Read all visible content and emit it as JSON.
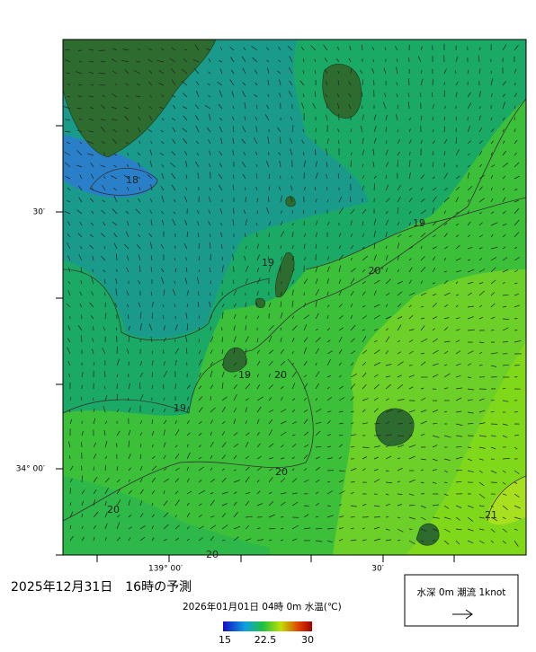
{
  "map": {
    "axis_left": [
      "30′",
      "34° 00′"
    ],
    "axis_bottom": [
      "139° 00′",
      "30′"
    ],
    "contour_labels": [
      18,
      19,
      19,
      "20'",
      19,
      20,
      19,
      20,
      20,
      21,
      20
    ],
    "title": "2025年12月31日　16時の予測",
    "subtitle": "2026年01月01日 04時 0m 水温(℃)",
    "colorbar": {
      "ticks": [
        15,
        22.5,
        30
      ]
    },
    "legend": "水深 0m 潮流 1knot"
  }
}
